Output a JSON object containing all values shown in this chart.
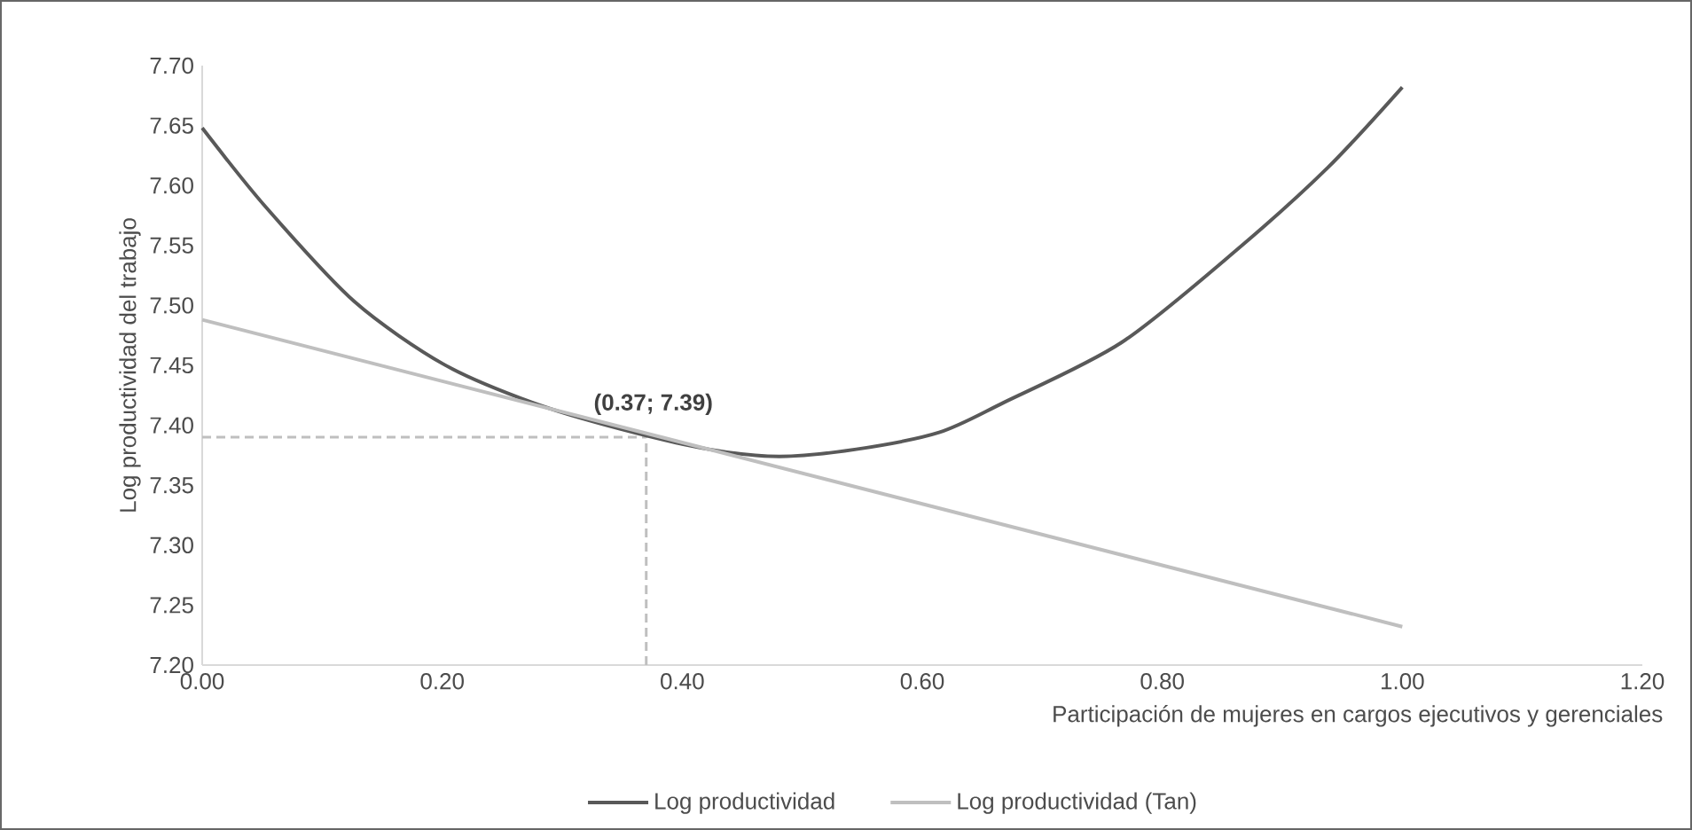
{
  "chart_data": {
    "type": "line",
    "xlabel": "Participación de mujeres en cargos ejecutivos y gerenciales",
    "ylabel": "Log productividad del trabajo",
    "xlim": [
      0,
      1.2
    ],
    "ylim": [
      7.2,
      7.7
    ],
    "xticks": [
      {
        "value": 0,
        "label": "0.00"
      },
      {
        "value": 0.2,
        "label": "0.20"
      },
      {
        "value": 0.4,
        "label": "0.40"
      },
      {
        "value": 0.6,
        "label": "0.60"
      },
      {
        "value": 0.8,
        "label": "0.80"
      },
      {
        "value": 1.0,
        "label": "1.00"
      },
      {
        "value": 1.2,
        "label": "1.20"
      }
    ],
    "yticks": [
      {
        "value": 7.2,
        "label": "7.20"
      },
      {
        "value": 7.25,
        "label": "7.25"
      },
      {
        "value": 7.3,
        "label": "7.30"
      },
      {
        "value": 7.35,
        "label": "7.35"
      },
      {
        "value": 7.4,
        "label": "7.40"
      },
      {
        "value": 7.45,
        "label": "7.45"
      },
      {
        "value": 7.5,
        "label": "7.50"
      },
      {
        "value": 7.55,
        "label": "7.55"
      },
      {
        "value": 7.6,
        "label": "7.60"
      },
      {
        "value": 7.65,
        "label": "7.65"
      },
      {
        "value": 7.7,
        "label": "7.70"
      }
    ],
    "grid": false,
    "legend": "bottom",
    "marker": "none",
    "line_style": "solid",
    "series": [
      {
        "name": "Log productividad",
        "color": "#595959",
        "x": [
          0,
          0.053,
          0.127,
          0.201,
          0.275,
          0.348,
          0.422,
          0.481,
          0.545,
          0.614,
          0.668,
          0.766,
          0.864,
          0.938,
          1.0
        ],
        "values": [
          7.648,
          7.582,
          7.503,
          7.451,
          7.419,
          7.397,
          7.38,
          7.374,
          7.38,
          7.394,
          7.419,
          7.469,
          7.548,
          7.615,
          7.682
        ]
      },
      {
        "name": "Log productividad (Tan)",
        "color": "#bfbfbf",
        "x": [
          0,
          1.0
        ],
        "values": [
          7.488,
          7.232
        ]
      }
    ],
    "ref_lines": [
      {
        "axis": "x",
        "value": 0.37,
        "color": "#bfbfbf",
        "line_style": "dashed"
      },
      {
        "axis": "y",
        "value": 7.39,
        "color": "#bfbfbf",
        "line_style": "dashed"
      }
    ],
    "annotations": [
      {
        "text": "(0.37; 7.39)",
        "x": 0.37,
        "y": 7.39
      }
    ]
  }
}
